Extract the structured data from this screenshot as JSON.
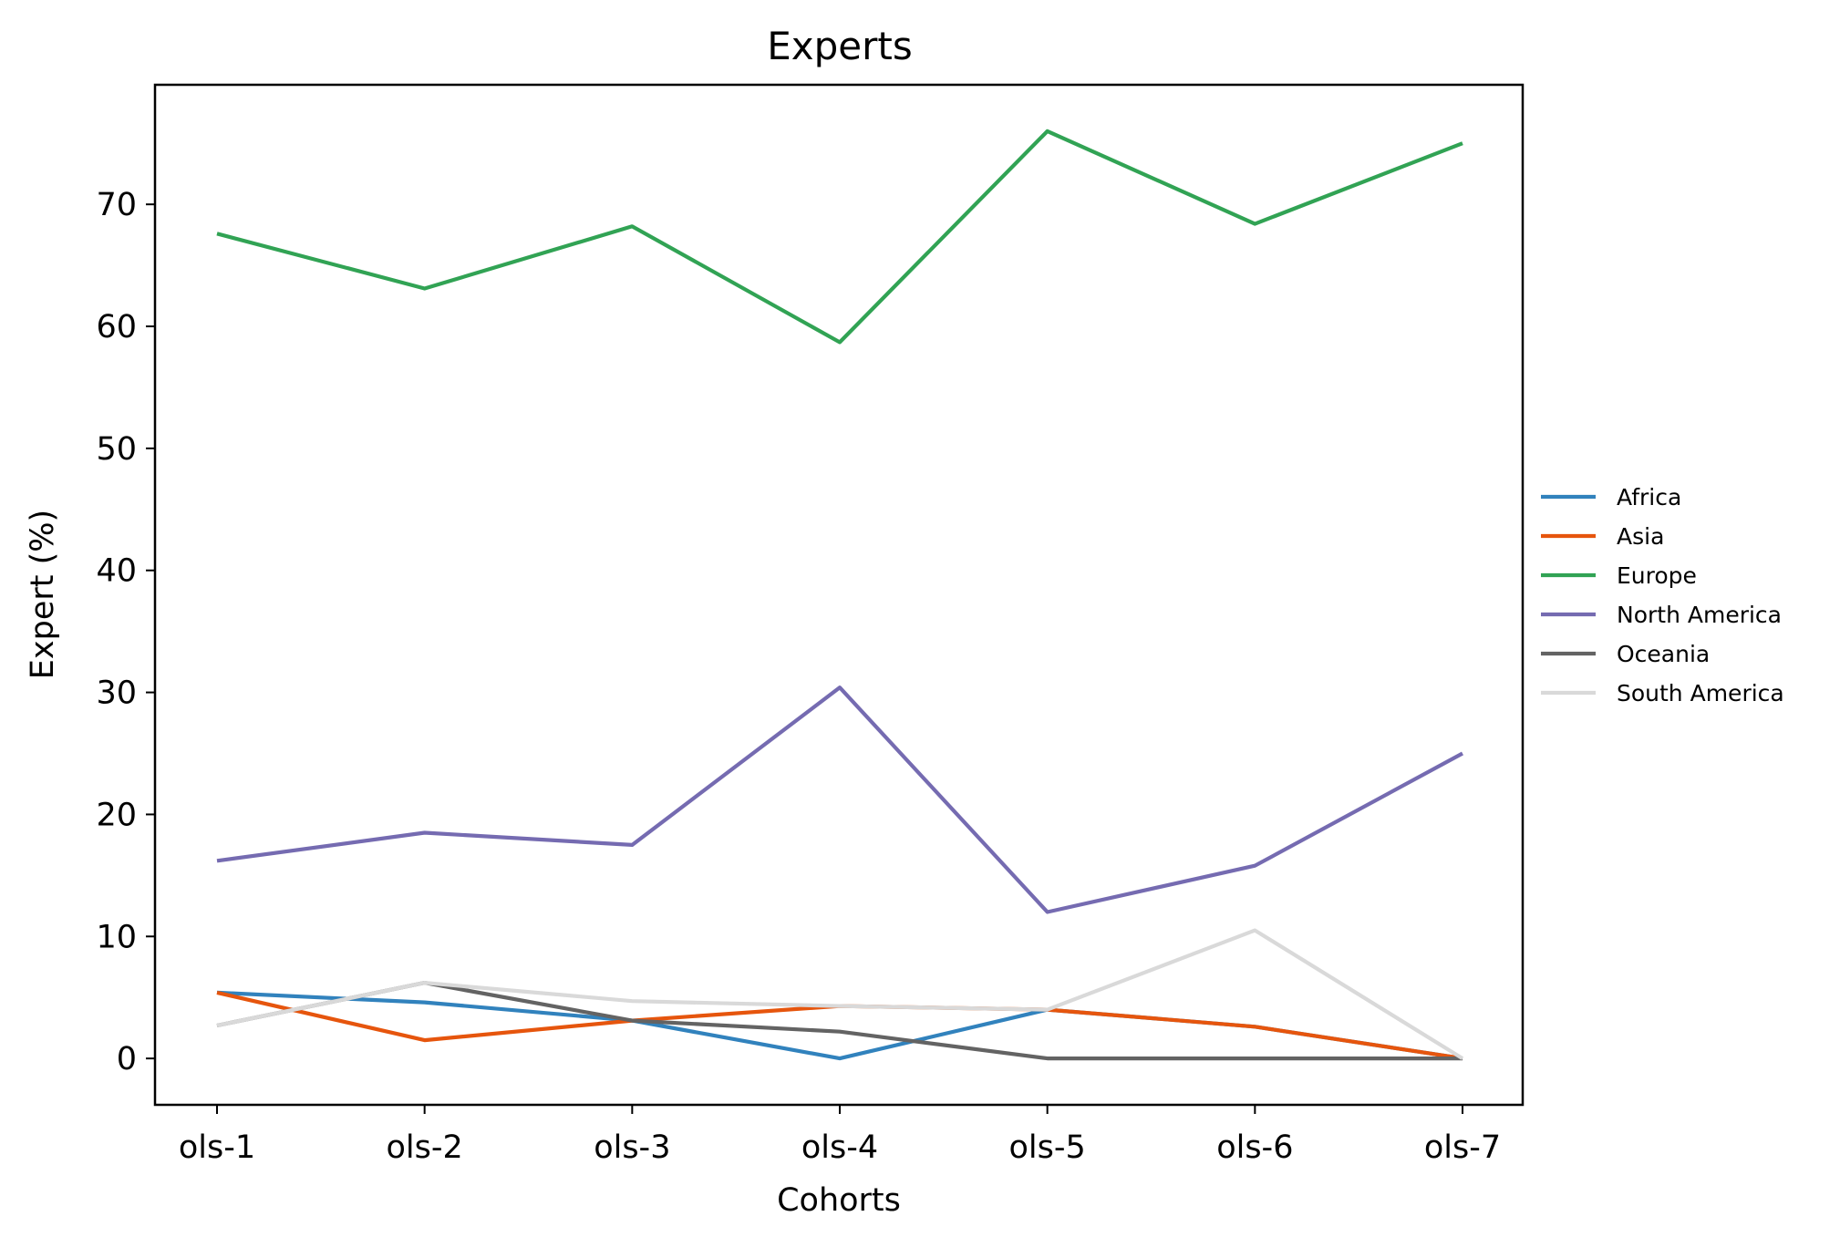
{
  "chart_data": {
    "type": "line",
    "title": "Experts",
    "xlabel": "Cohorts",
    "ylabel": "Expert (%)",
    "categories": [
      "ols-1",
      "ols-2",
      "ols-3",
      "ols-4",
      "ols-5",
      "ols-6",
      "ols-7"
    ],
    "ylim": [
      -3.8,
      79.8
    ],
    "yticks": [
      0,
      10,
      20,
      30,
      40,
      50,
      60,
      70
    ],
    "grid": false,
    "legend_position": "right",
    "series": [
      {
        "name": "Africa",
        "color": "#3182bd",
        "values": [
          5.4,
          4.6,
          3.1,
          0.0,
          4.0,
          2.6,
          0.0
        ]
      },
      {
        "name": "Asia",
        "color": "#e6550d",
        "values": [
          5.4,
          1.5,
          3.1,
          4.3,
          4.0,
          2.6,
          0.0
        ]
      },
      {
        "name": "Europe",
        "color": "#31a354",
        "values": [
          67.6,
          63.1,
          68.2,
          58.7,
          76.0,
          68.4,
          75.0
        ]
      },
      {
        "name": "North America",
        "color": "#756bb1",
        "values": [
          16.2,
          18.5,
          17.5,
          30.4,
          12.0,
          15.8,
          25.0
        ]
      },
      {
        "name": "Oceania",
        "color": "#636363",
        "values": [
          2.7,
          6.2,
          3.1,
          2.2,
          0.0,
          0.0,
          0.0
        ]
      },
      {
        "name": "South America",
        "color": "#d9d9d9",
        "values": [
          2.7,
          6.2,
          4.7,
          4.3,
          4.0,
          10.5,
          0.0
        ]
      }
    ]
  }
}
